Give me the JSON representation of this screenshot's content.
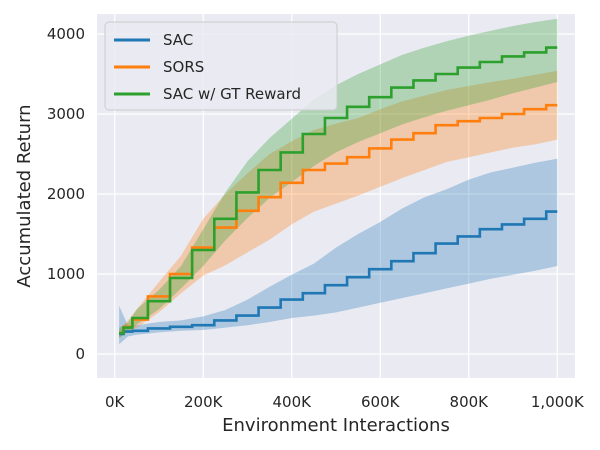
{
  "chart_data": {
    "type": "line",
    "title": "",
    "xlabel": "Environment Interactions",
    "ylabel": "Accumulated Return",
    "xlim": [
      -40000,
      1040000
    ],
    "ylim": [
      -300,
      4250
    ],
    "grid": true,
    "legend_position": "top-left",
    "x_ticks": [
      {
        "value": 0,
        "label": "0K"
      },
      {
        "value": 200000,
        "label": "200K"
      },
      {
        "value": 400000,
        "label": "400K"
      },
      {
        "value": 600000,
        "label": "600K"
      },
      {
        "value": 800000,
        "label": "800K"
      },
      {
        "value": 1000000,
        "label": "1,000K"
      }
    ],
    "y_ticks": [
      {
        "value": 0,
        "label": "0"
      },
      {
        "value": 1000,
        "label": "1000"
      },
      {
        "value": 2000,
        "label": "2000"
      },
      {
        "value": 3000,
        "label": "3000"
      },
      {
        "value": 4000,
        "label": "4000"
      }
    ],
    "x": [
      10000,
      30000,
      50000,
      100000,
      150000,
      200000,
      250000,
      300000,
      350000,
      400000,
      450000,
      500000,
      550000,
      600000,
      650000,
      700000,
      750000,
      800000,
      850000,
      900000,
      950000,
      1000000
    ],
    "series": [
      {
        "name": "SAC",
        "color": "#1f77b4",
        "values": [
          250,
          280,
          290,
          320,
          340,
          360,
          420,
          480,
          580,
          680,
          760,
          860,
          960,
          1060,
          1160,
          1260,
          1380,
          1470,
          1560,
          1620,
          1690,
          1780
        ],
        "lower": [
          120,
          220,
          240,
          270,
          290,
          300,
          330,
          360,
          400,
          450,
          480,
          520,
          580,
          640,
          700,
          760,
          820,
          880,
          940,
          990,
          1040,
          1100
        ],
        "upper": [
          600,
          360,
          360,
          400,
          420,
          470,
          550,
          680,
          840,
          990,
          1130,
          1330,
          1500,
          1650,
          1820,
          1960,
          2060,
          2180,
          2270,
          2330,
          2390,
          2440
        ]
      },
      {
        "name": "SORS",
        "color": "#ff7f0e",
        "values": [
          260,
          340,
          430,
          720,
          1000,
          1330,
          1580,
          1790,
          1960,
          2140,
          2300,
          2380,
          2460,
          2570,
          2680,
          2760,
          2860,
          2910,
          2950,
          3000,
          3060,
          3110
        ],
        "lower": [
          200,
          280,
          330,
          520,
          760,
          980,
          1110,
          1270,
          1430,
          1620,
          1780,
          1880,
          1980,
          2090,
          2200,
          2300,
          2400,
          2460,
          2520,
          2580,
          2620,
          2680
        ],
        "upper": [
          300,
          420,
          560,
          900,
          1230,
          1690,
          2000,
          2260,
          2500,
          2660,
          2800,
          2880,
          2950,
          3060,
          3160,
          3230,
          3300,
          3350,
          3400,
          3440,
          3490,
          3540
        ]
      },
      {
        "name": "SAC w/ GT Reward",
        "color": "#2ca02c",
        "values": [
          260,
          330,
          450,
          660,
          950,
          1300,
          1690,
          2020,
          2300,
          2520,
          2750,
          2950,
          3090,
          3210,
          3330,
          3420,
          3500,
          3580,
          3650,
          3720,
          3770,
          3830
        ],
        "lower": [
          200,
          280,
          370,
          560,
          820,
          1100,
          1420,
          1700,
          1950,
          2150,
          2350,
          2520,
          2650,
          2760,
          2870,
          2960,
          3040,
          3110,
          3180,
          3260,
          3330,
          3400
        ],
        "upper": [
          330,
          390,
          560,
          800,
          1100,
          1560,
          2020,
          2410,
          2700,
          2940,
          3180,
          3360,
          3500,
          3620,
          3740,
          3830,
          3910,
          3980,
          4040,
          4100,
          4150,
          4190
        ]
      }
    ]
  }
}
